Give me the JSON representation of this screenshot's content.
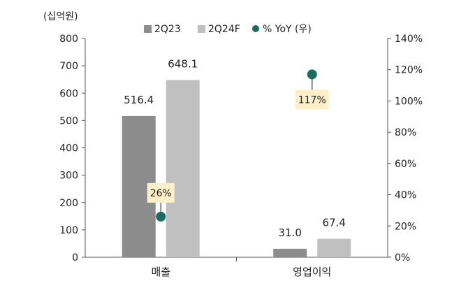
{
  "chart_data": {
    "type": "bar",
    "unit_label": "(십억원)",
    "categories": [
      "매출",
      "영업이익"
    ],
    "series": [
      {
        "name": "2Q23",
        "values": [
          516.4,
          31.0
        ],
        "labels": [
          "516.4",
          "31.0"
        ],
        "color": "#8c8c8c"
      },
      {
        "name": "2Q24F",
        "values": [
          648.1,
          67.4
        ],
        "labels": [
          "648.1",
          "67.4"
        ],
        "color": "#c0c0c0"
      }
    ],
    "overlay": {
      "name": "% YoY (우)",
      "type": "scatter",
      "axis": "right",
      "values": [
        26,
        117
      ],
      "labels": [
        "26%",
        "117%"
      ],
      "color": "#1b6b5f",
      "label_bg": "#fdf0c9"
    },
    "left_axis": {
      "min": 0,
      "max": 800,
      "ticks": [
        "0",
        "100",
        "200",
        "300",
        "400",
        "500",
        "600",
        "700",
        "800"
      ]
    },
    "right_axis": {
      "min": 0,
      "max": 140,
      "ticks": [
        "0%",
        "20%",
        "40%",
        "60%",
        "80%",
        "100%",
        "120%",
        "140%"
      ]
    },
    "legend_position": "top",
    "grid": false
  }
}
